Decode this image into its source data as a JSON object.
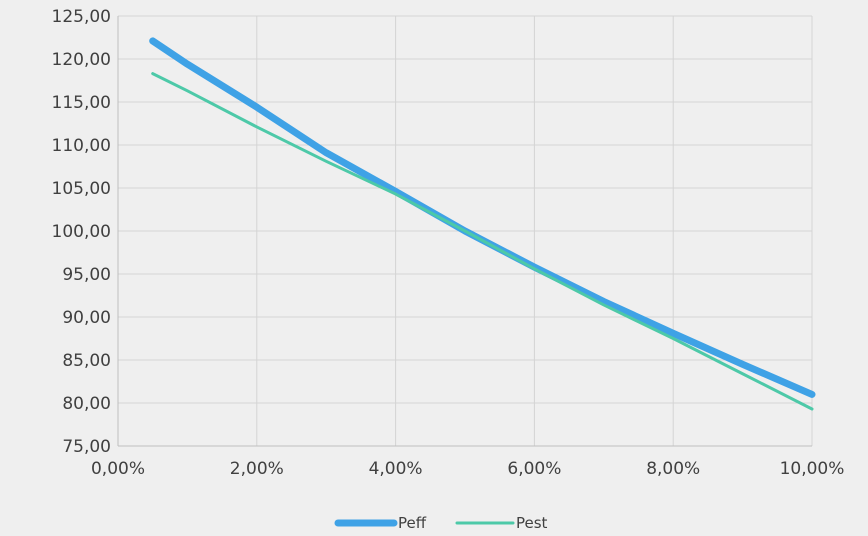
{
  "chart_data": {
    "type": "line",
    "title": "",
    "xlabel": "",
    "ylabel": "",
    "x": [
      0.005,
      0.01,
      0.02,
      0.03,
      0.04,
      0.05,
      0.06,
      0.07,
      0.08,
      0.09,
      0.1
    ],
    "series": [
      {
        "name": "Peff",
        "color": "#3fa2e6",
        "values": [
          122.1,
          119.4,
          114.4,
          109.1,
          104.6,
          100.0,
          95.8,
          91.8,
          88.1,
          84.5,
          81.0
        ]
      },
      {
        "name": "Pest",
        "color": "#4dc9a8",
        "values": [
          118.3,
          116.3,
          112.1,
          108.1,
          104.3,
          100.0,
          95.6,
          91.4,
          87.5,
          83.4,
          79.3
        ]
      }
    ],
    "xlim": [
      0,
      0.1
    ],
    "ylim": [
      75,
      125
    ],
    "x_ticks": [
      0,
      0.02,
      0.04,
      0.06,
      0.08,
      0.1
    ],
    "x_tick_labels": [
      "0,00%",
      "2,00%",
      "4,00%",
      "6,00%",
      "8,00%",
      "10,00%"
    ],
    "y_ticks": [
      75,
      80,
      85,
      90,
      95,
      100,
      105,
      110,
      115,
      120,
      125
    ],
    "y_tick_labels": [
      "75,00",
      "80,00",
      "85,00",
      "90,00",
      "95,00",
      "100,00",
      "105,00",
      "110,00",
      "115,00",
      "120,00",
      "125,00"
    ],
    "grid": true,
    "legend_position": "bottom"
  }
}
